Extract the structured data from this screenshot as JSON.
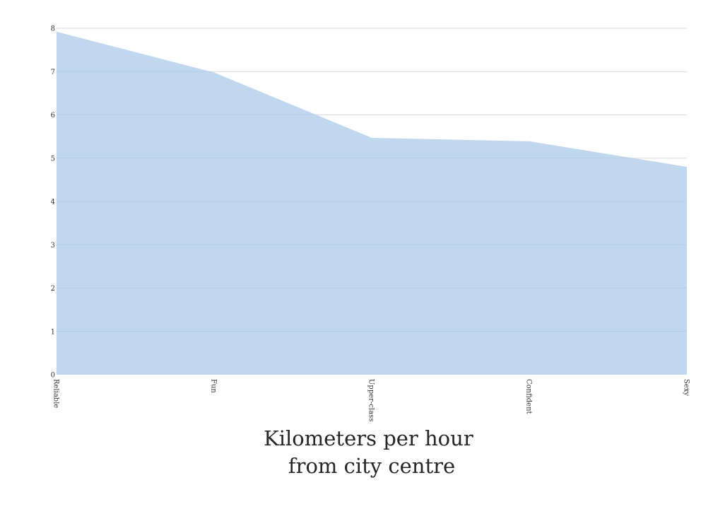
{
  "chart_data": {
    "type": "area",
    "title": "",
    "xlabel": "Kilometers per hour\nfrom city centre",
    "xlabel_lines": [
      "Kilometers per hour",
      "from city centre"
    ],
    "ylabel": "",
    "categories": [
      "Reliable",
      "Fun",
      "Upper-class",
      "Confident",
      "Sexy"
    ],
    "series": [
      {
        "values": [
          7.92,
          6.98,
          5.47,
          5.39,
          4.8
        ]
      }
    ],
    "ylim": [
      0,
      8
    ],
    "yticks": [
      "0",
      "1",
      "2",
      "3",
      "4",
      "5",
      "6",
      "7",
      "8"
    ],
    "grid": true,
    "legend": "none",
    "colors": {
      "area": "#a8c8e8",
      "grid": "#d9d9d9",
      "text": "#333333"
    }
  }
}
